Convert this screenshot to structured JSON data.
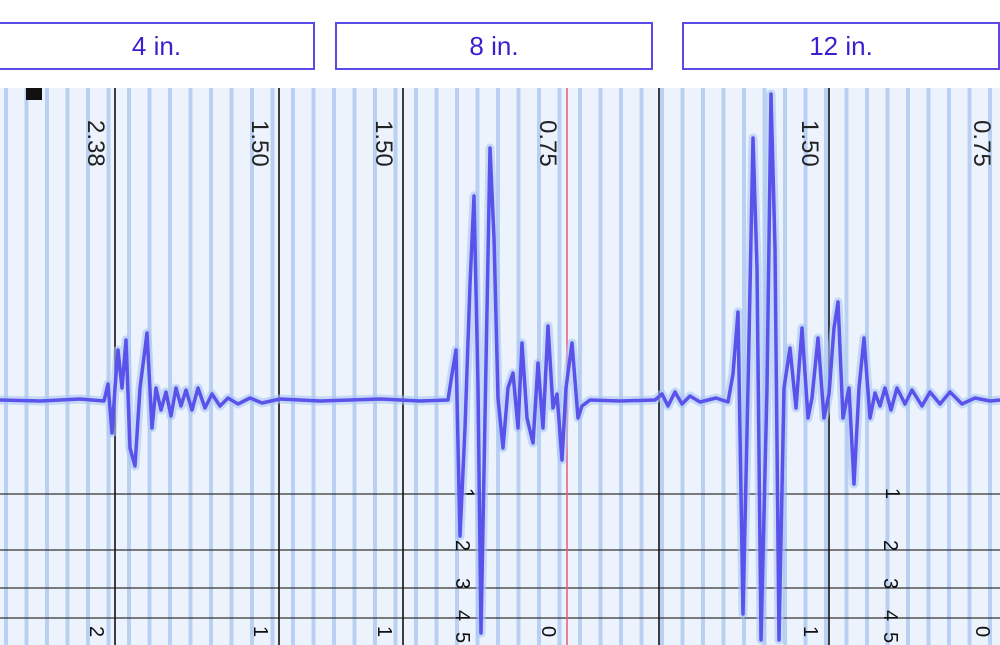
{
  "tabs": [
    {
      "label": "4 in."
    },
    {
      "label": "8 in."
    },
    {
      "label": "12 in."
    }
  ],
  "strip": {
    "top_labels": [
      "2.38",
      "1.50",
      "1.50",
      "0.75",
      "1.50",
      "0.75"
    ],
    "bottom_labels": [
      "2",
      "1",
      "1",
      "0",
      "1",
      "0"
    ],
    "scale_labels_left": [
      "1",
      "2",
      "3",
      "4",
      "5"
    ],
    "scale_labels_right": [
      "1",
      "2",
      "3",
      "4",
      "5"
    ]
  },
  "colors": {
    "accent": "#5b4be6",
    "trace": "#5a52ea",
    "grid": "#b9d0f2",
    "background": "#edf3fc",
    "marker": "#e45b7d"
  }
}
